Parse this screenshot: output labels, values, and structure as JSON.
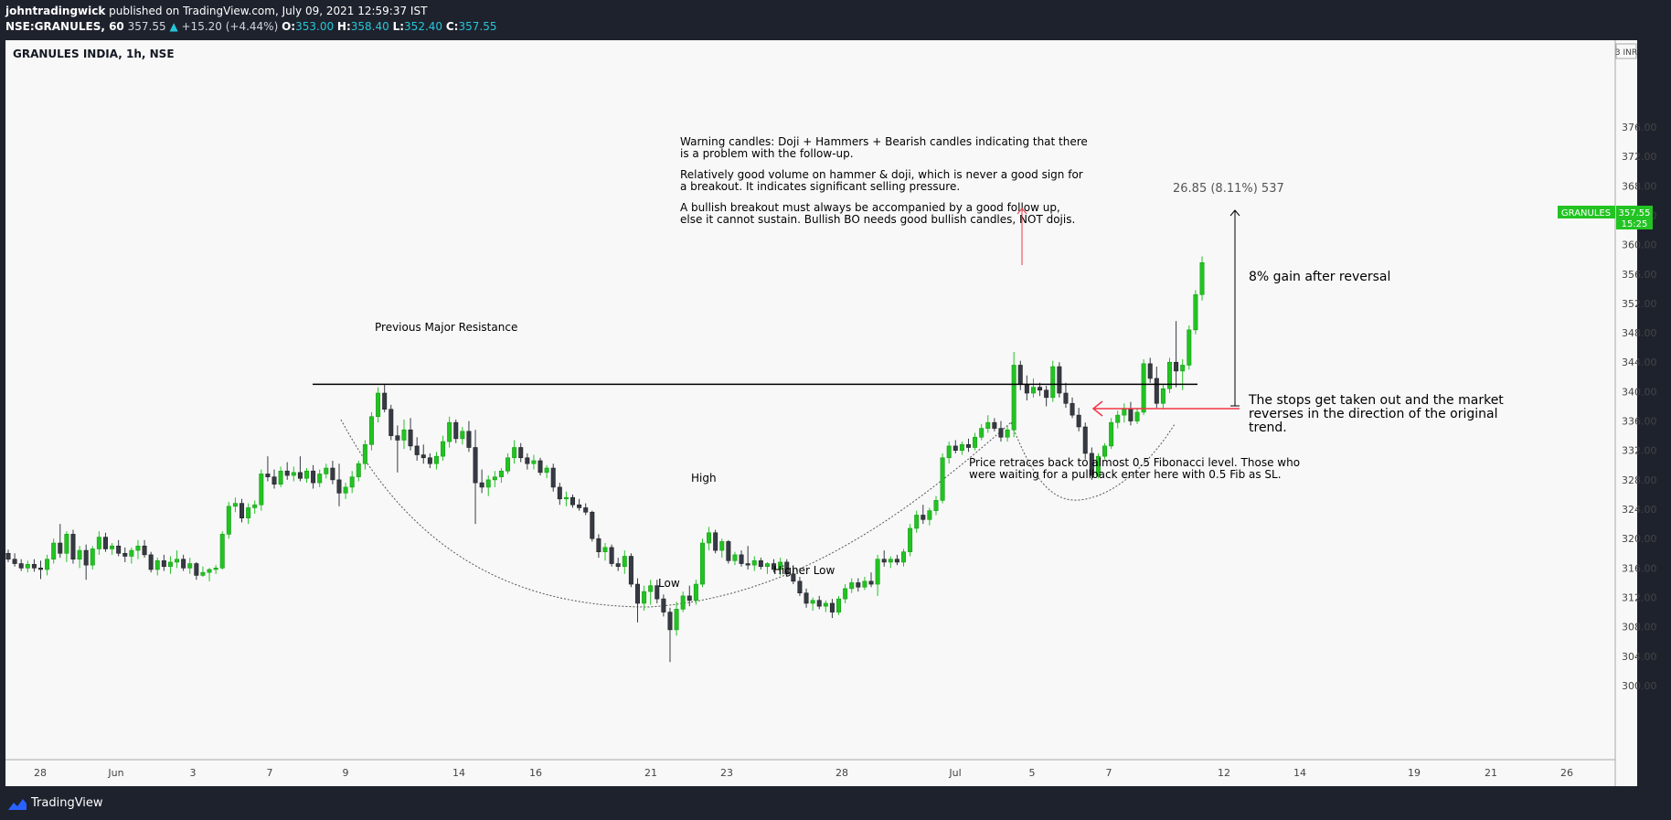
{
  "header": {
    "publisher": "johntradingwick",
    "published_text": "published on TradingView.com, July 09, 2021 12:59:37 IST",
    "symbol_interval": "NSE:GRANULES, 60",
    "last": "357.55",
    "change_arrow": "▲",
    "change": "+15.20 (+4.44%)",
    "o_label": "O:",
    "o_value": "353.00",
    "h_label": "H:",
    "h_value": "358.40",
    "l_label": "L:",
    "l_value": "352.40",
    "c_label": "C:",
    "c_value": "357.55"
  },
  "chart_title": "GRANULES INDIA, 1h, NSE",
  "currency": "3 INR",
  "price_tag": {
    "label": "GRANULES",
    "price": "357.55",
    "countdown": "15:25",
    "color": "#22c322"
  },
  "annotations": {
    "warning": [
      "Warning candles: Doji + Hammers + Bearish candles indicating that there",
      "is a problem with the follow-up.",
      "Relatively good volume on hammer & doji, which is never a good sign for",
      "a breakout. It indicates significant selling pressure.",
      "A bullish breakout must always be accompanied by a good follow up,",
      "else it cannot sustain. Bullish BO needs good bullish candles, NOT dojis."
    ],
    "measure": "26.85 (8.11%) 537",
    "gain": "8% gain after reversal",
    "stops": [
      "The stops get taken out and the market",
      "reverses in the direction of the original",
      "trend."
    ],
    "fib": [
      "Price retraces back to almost 0.5 Fibonacci level. Those who",
      "were waiting for a pullback enter here with 0.5 Fib as SL."
    ],
    "resistance": "Previous Major Resistance",
    "high": "High",
    "low": "Low",
    "higher_low": "Higher Low"
  },
  "footer": {
    "brand": "TradingView"
  },
  "colors": {
    "up": "#22c322",
    "down": "#363a45",
    "bg": "#f8f8f8",
    "arrow": "#f23645",
    "resistance": "#000000"
  },
  "chart_data": {
    "type": "candlestick",
    "title": "GRANULES INDIA, 1h, NSE",
    "ylim": [
      297,
      380
    ],
    "y_ticks": [
      300,
      304,
      308,
      312,
      316,
      320,
      324,
      328,
      332,
      336,
      340,
      344,
      348,
      352,
      356,
      360,
      364,
      368,
      372,
      376
    ],
    "x_ticks": [
      "28",
      "Jun",
      "3",
      "7",
      "9",
      "14",
      "16",
      "21",
      "23",
      "28",
      "Jul",
      "5",
      "7",
      "12",
      "14",
      "19",
      "21",
      "26"
    ],
    "resistance_level": 341,
    "last_price": 357.55,
    "measure_from": 331,
    "measure_to": 358.4,
    "candles": [
      [
        318,
        318.5,
        316.8,
        317.2
      ],
      [
        317.2,
        318,
        316.2,
        316.6
      ],
      [
        316.6,
        317.2,
        315.6,
        316
      ],
      [
        316,
        317,
        315.4,
        316.5
      ],
      [
        316.5,
        317.2,
        315.5,
        316
      ],
      [
        316,
        317,
        314.5,
        315.8
      ],
      [
        315.8,
        317.8,
        315,
        317.2
      ],
      [
        317.2,
        320,
        316.6,
        319.4
      ],
      [
        319.4,
        322,
        317.4,
        318
      ],
      [
        318,
        321,
        316.8,
        320.6
      ],
      [
        320.6,
        321.2,
        316.6,
        317.2
      ],
      [
        317.2,
        319,
        316,
        318.4
      ],
      [
        318.4,
        319.2,
        314.4,
        316.4
      ],
      [
        316.4,
        319,
        315.8,
        318.6
      ],
      [
        318.6,
        321,
        317.8,
        320.2
      ],
      [
        320.2,
        320.8,
        318.2,
        318.6
      ],
      [
        318.6,
        319.4,
        317.8,
        319
      ],
      [
        319,
        319.8,
        317.6,
        318
      ],
      [
        318,
        318.8,
        316.8,
        317.6
      ],
      [
        317.6,
        318.8,
        316.6,
        318.4
      ],
      [
        318.4,
        319.8,
        317.2,
        319
      ],
      [
        319,
        319.8,
        317.4,
        317.8
      ],
      [
        317.8,
        318.2,
        315.4,
        315.8
      ],
      [
        315.8,
        317.4,
        315,
        317
      ],
      [
        317,
        317.8,
        315.6,
        316.2
      ],
      [
        316.2,
        317.6,
        315.2,
        316.8
      ],
      [
        316.8,
        318.4,
        316,
        317.2
      ],
      [
        317.2,
        317.8,
        315.6,
        316
      ],
      [
        316,
        317.4,
        315.2,
        316.6
      ],
      [
        316.6,
        316.8,
        314.4,
        315
      ],
      [
        315,
        316.2,
        314.8,
        315.4
      ],
      [
        315.4,
        316,
        314.2,
        315.8
      ],
      [
        315.8,
        316.4,
        315.2,
        316
      ],
      [
        316,
        321,
        315.8,
        320.6
      ],
      [
        320.6,
        325,
        320,
        324.4
      ],
      [
        324.4,
        325.6,
        323.6,
        324.8
      ],
      [
        324.8,
        325.4,
        322.2,
        322.8
      ],
      [
        322.8,
        324.8,
        322,
        324.2
      ],
      [
        324.2,
        325.2,
        323.4,
        324.6
      ],
      [
        324.6,
        329.4,
        323.8,
        328.8
      ],
      [
        328.8,
        331.2,
        327.8,
        328.4
      ],
      [
        328.4,
        329.4,
        326.8,
        327.4
      ],
      [
        327.4,
        329.8,
        327,
        329.2
      ],
      [
        329.2,
        330.4,
        328,
        328.6
      ],
      [
        328.6,
        329.8,
        327.8,
        329
      ],
      [
        329,
        331.2,
        327.8,
        328.2
      ],
      [
        328.2,
        329.6,
        327.6,
        329.2
      ],
      [
        329.2,
        330,
        326.8,
        327.6
      ],
      [
        327.6,
        329.4,
        327,
        328.8
      ],
      [
        328.8,
        330.2,
        328.2,
        329.6
      ],
      [
        329.6,
        330.6,
        327.4,
        328
      ],
      [
        328,
        330.2,
        324.4,
        326.2
      ],
      [
        326.2,
        327.6,
        325.4,
        327
      ],
      [
        327,
        329.2,
        326.2,
        328.4
      ],
      [
        328.4,
        330.6,
        327.8,
        330.2
      ],
      [
        330.2,
        333.4,
        329.4,
        332.8
      ],
      [
        332.8,
        337.2,
        332,
        336.6
      ],
      [
        336.6,
        340.6,
        335.8,
        339.8
      ],
      [
        339.8,
        341,
        337.2,
        337.6
      ],
      [
        337.6,
        338.2,
        333.4,
        334
      ],
      [
        334,
        335.4,
        329,
        333.4
      ],
      [
        333.4,
        336.2,
        332.2,
        334.8
      ],
      [
        334.8,
        336.4,
        332,
        332.6
      ],
      [
        332.6,
        333.8,
        330.6,
        331.4
      ],
      [
        331.4,
        332.8,
        330.2,
        331
      ],
      [
        331,
        331.6,
        329.6,
        330.2
      ],
      [
        330.2,
        331.8,
        329.4,
        331.2
      ],
      [
        331.2,
        334,
        330.6,
        333.2
      ],
      [
        333.2,
        336.6,
        332.4,
        335.8
      ],
      [
        335.8,
        336.2,
        333,
        333.6
      ],
      [
        333.6,
        335.2,
        332.8,
        334.6
      ],
      [
        334.6,
        336,
        331.8,
        332.4
      ],
      [
        332.4,
        334.8,
        322,
        327.6
      ],
      [
        327.6,
        329.4,
        326.2,
        327
      ],
      [
        327,
        328.6,
        325.8,
        328
      ],
      [
        328,
        329.2,
        327,
        328.4
      ],
      [
        328.4,
        329.6,
        327.6,
        329.2
      ],
      [
        329.2,
        331.6,
        328.8,
        331
      ],
      [
        331,
        333.4,
        330.2,
        332.4
      ],
      [
        332.4,
        333,
        330.4,
        331
      ],
      [
        331,
        331.6,
        329.4,
        330.2
      ],
      [
        330.2,
        331.4,
        329.4,
        330.6
      ],
      [
        330.6,
        331,
        328.6,
        329
      ],
      [
        329,
        330,
        328.2,
        329.6
      ],
      [
        329.6,
        330.2,
        326.4,
        327
      ],
      [
        327,
        327.6,
        324.6,
        325.4
      ],
      [
        325.4,
        326.4,
        324.4,
        325.6
      ],
      [
        325.6,
        326,
        324.2,
        324.6
      ],
      [
        324.6,
        325.4,
        323.8,
        324.2
      ],
      [
        324.2,
        324.8,
        323.2,
        323.6
      ],
      [
        323.6,
        323.8,
        319.6,
        320
      ],
      [
        320,
        320.6,
        317.4,
        318.2
      ],
      [
        318.2,
        319.4,
        317,
        318.8
      ],
      [
        318.8,
        319.2,
        316.2,
        316.6
      ],
      [
        316.6,
        317.4,
        315.6,
        316.2
      ],
      [
        316.2,
        318.4,
        315.2,
        317.6
      ],
      [
        317.6,
        318,
        313.4,
        313.8
      ],
      [
        313.8,
        314.6,
        308.6,
        311.2
      ],
      [
        311.2,
        313.6,
        310.2,
        312.8
      ],
      [
        312.8,
        314.4,
        311,
        313.6
      ],
      [
        313.6,
        314.4,
        311.2,
        311.8
      ],
      [
        311.8,
        312.4,
        309.4,
        310
      ],
      [
        310,
        310.6,
        303.2,
        307.6
      ],
      [
        307.6,
        311.4,
        306.8,
        310.4
      ],
      [
        310.4,
        312.8,
        310,
        312.2
      ],
      [
        312.2,
        313.6,
        310.8,
        311.6
      ],
      [
        311.6,
        314.4,
        311,
        313.8
      ],
      [
        313.8,
        320,
        313.4,
        319.4
      ],
      [
        319.4,
        321.6,
        318.4,
        320.8
      ],
      [
        320.8,
        321.2,
        318,
        318.4
      ],
      [
        318.4,
        320,
        317.4,
        319.6
      ],
      [
        319.6,
        319.8,
        316.6,
        317
      ],
      [
        317,
        318.2,
        316.4,
        317.8
      ],
      [
        317.8,
        318.4,
        316.2,
        316.6
      ],
      [
        316.6,
        319,
        315.8,
        316.4
      ],
      [
        316.4,
        317.6,
        315.6,
        317
      ],
      [
        317,
        317.4,
        315.8,
        316.2
      ],
      [
        316.2,
        316.8,
        315.2,
        316.6
      ],
      [
        316.6,
        317.2,
        315.4,
        315.8
      ],
      [
        315.8,
        317.4,
        315,
        316.8
      ],
      [
        316.8,
        317.2,
        314.8,
        315.2
      ],
      [
        315.2,
        316,
        313.8,
        314.2
      ],
      [
        314.2,
        314.8,
        312.2,
        312.6
      ],
      [
        312.6,
        313.2,
        310.6,
        311.2
      ],
      [
        311.2,
        312,
        310.2,
        311.6
      ],
      [
        311.6,
        312.2,
        310.4,
        310.8
      ],
      [
        310.8,
        311.6,
        310,
        311.2
      ],
      [
        311.2,
        311.8,
        309.2,
        310
      ],
      [
        310,
        312.2,
        309.6,
        311.8
      ],
      [
        311.8,
        313.8,
        311.2,
        313.2
      ],
      [
        313.2,
        314.6,
        312.6,
        314
      ],
      [
        314,
        314.6,
        312.8,
        313.4
      ],
      [
        313.4,
        314.8,
        313,
        314.2
      ],
      [
        314.2,
        315.4,
        313.4,
        313.8
      ],
      [
        313.8,
        317.8,
        312.2,
        317.2
      ],
      [
        317.2,
        318.4,
        316.2,
        316.8
      ],
      [
        316.8,
        317.6,
        316,
        317.2
      ],
      [
        317.2,
        317.8,
        316.4,
        316.8
      ],
      [
        316.8,
        318.6,
        316.2,
        318.2
      ],
      [
        318.2,
        322,
        317.6,
        321.4
      ],
      [
        321.4,
        323.8,
        320.8,
        323.2
      ],
      [
        323.2,
        324.6,
        322,
        322.6
      ],
      [
        322.6,
        324.2,
        321.8,
        323.8
      ],
      [
        323.8,
        325.8,
        323.2,
        325.2
      ],
      [
        325.2,
        331.6,
        324.8,
        331
      ],
      [
        331,
        333.2,
        330.2,
        332.6
      ],
      [
        332.6,
        333.4,
        331.6,
        332
      ],
      [
        332,
        333.2,
        331.4,
        332.8
      ],
      [
        332.8,
        333.6,
        331.8,
        332.4
      ],
      [
        332.4,
        334.4,
        332,
        333.8
      ],
      [
        333.8,
        335.6,
        333.4,
        335
      ],
      [
        335,
        336.8,
        334.4,
        335.8
      ],
      [
        335.8,
        336.4,
        334.6,
        335
      ],
      [
        335,
        336,
        333.2,
        333.8
      ],
      [
        333.8,
        335.4,
        333.2,
        334.8
      ],
      [
        334.8,
        345.4,
        333.8,
        343.6
      ],
      [
        343.6,
        344.2,
        340.2,
        341
      ],
      [
        341,
        342.2,
        338.8,
        339.8
      ],
      [
        339.8,
        341.8,
        339.2,
        340.6
      ],
      [
        340.6,
        341.2,
        339.4,
        340.2
      ],
      [
        340.2,
        340.8,
        338,
        339.2
      ],
      [
        339.2,
        344.2,
        338.6,
        343.4
      ],
      [
        343.4,
        344,
        339.2,
        339.8
      ],
      [
        339.8,
        341.2,
        337.8,
        338.4
      ],
      [
        338.4,
        339.2,
        336.4,
        336.8
      ],
      [
        336.8,
        337.8,
        334.6,
        335.2
      ],
      [
        335.2,
        335.8,
        330.8,
        331.6
      ],
      [
        331.6,
        332.4,
        328,
        328.6
      ],
      [
        328.6,
        331.6,
        328.2,
        331.2
      ],
      [
        331.2,
        333,
        330.8,
        332.6
      ],
      [
        332.6,
        336.4,
        332.2,
        335.8
      ],
      [
        335.8,
        337.4,
        335,
        336.8
      ],
      [
        336.8,
        338.4,
        335.8,
        337.6
      ],
      [
        337.6,
        338.6,
        335.4,
        336
      ],
      [
        336,
        337.8,
        335.6,
        337.2
      ],
      [
        337.2,
        344.4,
        336.8,
        343.8
      ],
      [
        343.8,
        344.6,
        341.2,
        341.8
      ],
      [
        341.8,
        343.4,
        337.8,
        338.4
      ],
      [
        338.4,
        341,
        337.6,
        340.4
      ],
      [
        340.4,
        344.6,
        339.8,
        344
      ],
      [
        344,
        349.6,
        340.6,
        342.8
      ],
      [
        342.8,
        344.4,
        340.2,
        343.6
      ],
      [
        343.6,
        349,
        343,
        348.4
      ],
      [
        348.4,
        353.8,
        347.8,
        353.2
      ],
      [
        353.2,
        358.4,
        352.4,
        357.55
      ]
    ]
  }
}
